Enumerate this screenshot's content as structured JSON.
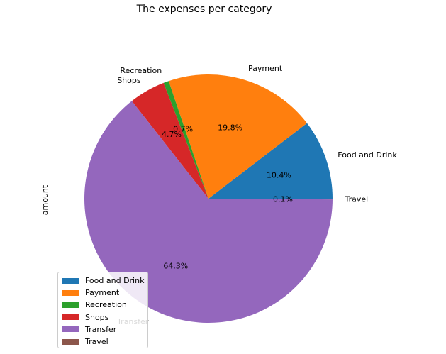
{
  "chart_data": {
    "type": "pie",
    "title": "The expenses per category",
    "ylabel": "amount",
    "categories": [
      "Food and Drink",
      "Payment",
      "Recreation",
      "Shops",
      "Transfer",
      "Travel"
    ],
    "percentages": [
      10.4,
      19.8,
      0.7,
      4.7,
      64.3,
      0.1
    ],
    "percent_labels": [
      "10.4%",
      "19.8%",
      "0.7%",
      "4.7%",
      "64.3%",
      "0.1%"
    ],
    "colors": [
      "#1f77b4",
      "#ff7f0e",
      "#2ca02c",
      "#d62728",
      "#9467bd",
      "#8c564b"
    ],
    "legend_placement": "lower-left",
    "grid": false
  }
}
